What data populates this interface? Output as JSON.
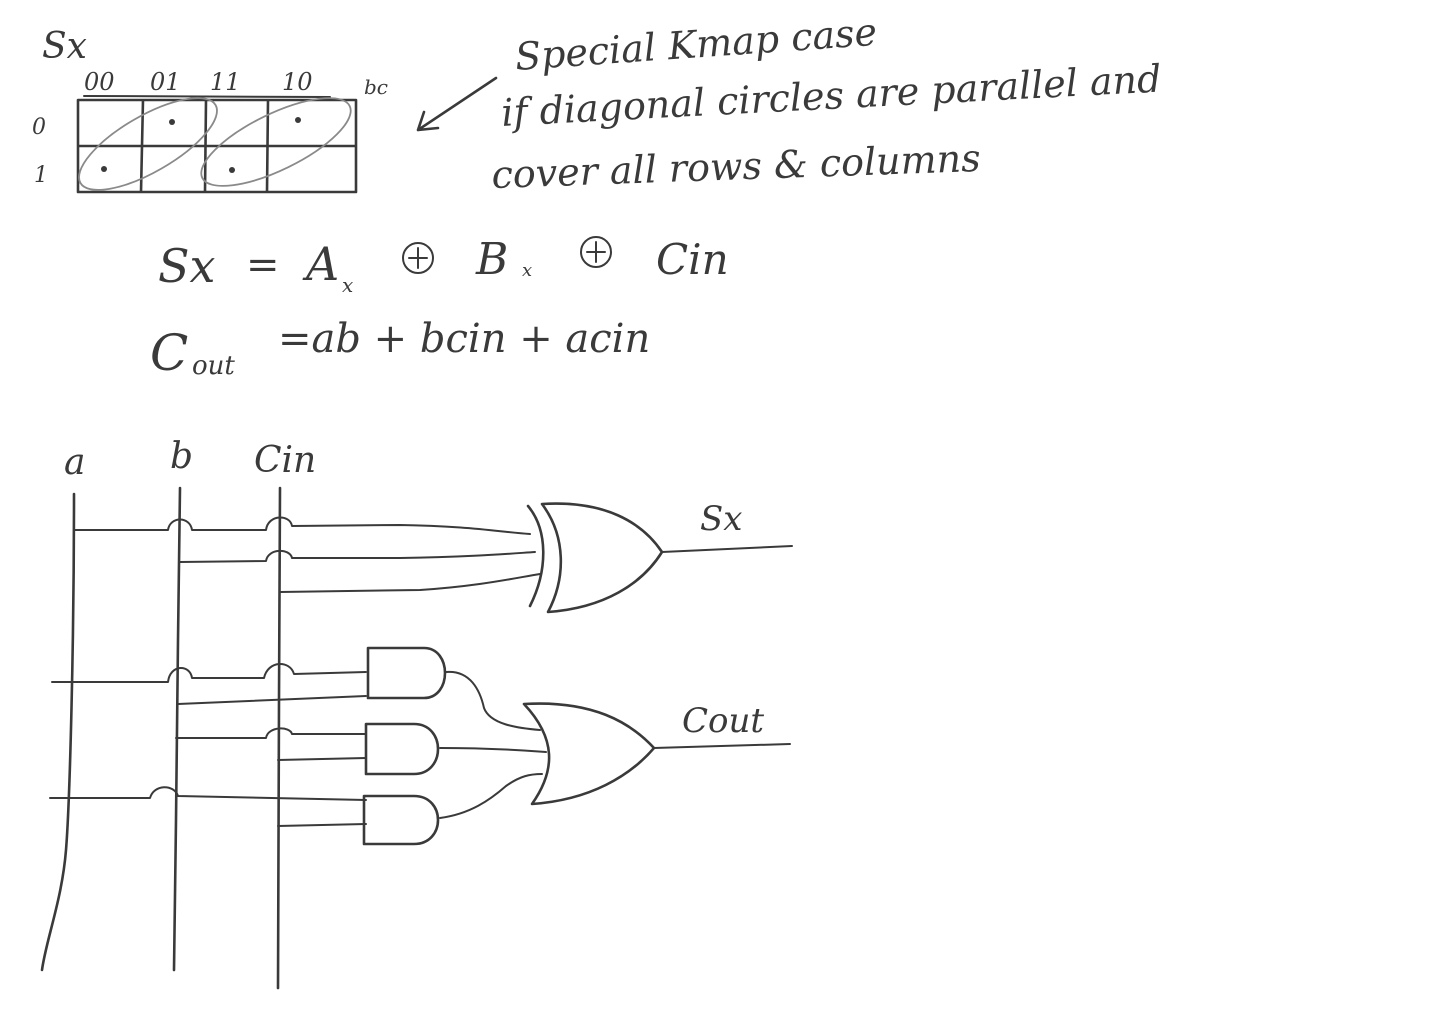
{
  "kmap": {
    "title": "Sx",
    "col_headers": [
      "00",
      "01",
      "11",
      "10"
    ],
    "col_var": "bc",
    "row_headers": [
      "0",
      "1"
    ],
    "cells": [
      [
        0,
        1,
        0,
        1
      ],
      [
        1,
        0,
        1,
        0
      ]
    ]
  },
  "note": {
    "lines": [
      "Special Kmap case",
      "if diagonal circles are parallel and",
      "cover all rows & columns"
    ]
  },
  "equations": {
    "sx": {
      "lhs": "Sx",
      "eq": "=",
      "a": "A",
      "a_sub": "x",
      "b": "B",
      "b_sub": "x",
      "c": "Cin"
    },
    "cout": {
      "lhs": "C",
      "lhs_sub": "out",
      "rhs": "=ab + bcin + acin"
    }
  },
  "circuit": {
    "inputs": [
      "a",
      "b",
      "Cin"
    ],
    "outputs": [
      "Sx",
      "Cout"
    ]
  }
}
